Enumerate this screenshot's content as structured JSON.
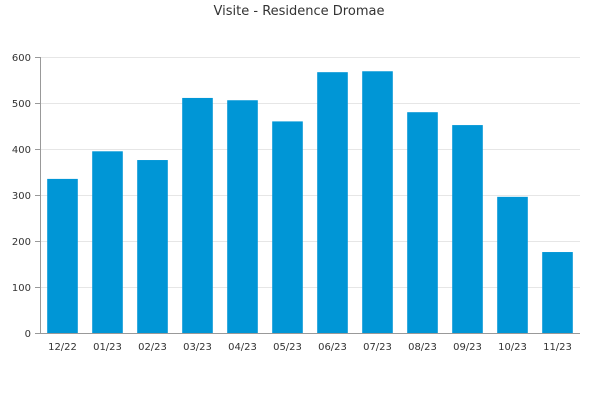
{
  "chart_data": {
    "type": "bar",
    "title": "Visite - Residence Dromae",
    "xlabel": "",
    "ylabel": "",
    "categories": [
      "12/22",
      "01/23",
      "02/23",
      "03/23",
      "04/23",
      "05/23",
      "06/23",
      "07/23",
      "08/23",
      "09/23",
      "10/23",
      "11/23"
    ],
    "values": [
      335,
      395,
      376,
      511,
      506,
      460,
      567,
      569,
      480,
      452,
      296,
      176
    ],
    "ylim": [
      0,
      600
    ],
    "yticks": [
      0,
      100,
      200,
      300,
      400,
      500,
      600
    ],
    "grid": true,
    "legend": false,
    "bar_color": "#0096d6",
    "grid_color": "#e6e6e6",
    "axis_color": "#999999",
    "text_color": "#333333"
  }
}
